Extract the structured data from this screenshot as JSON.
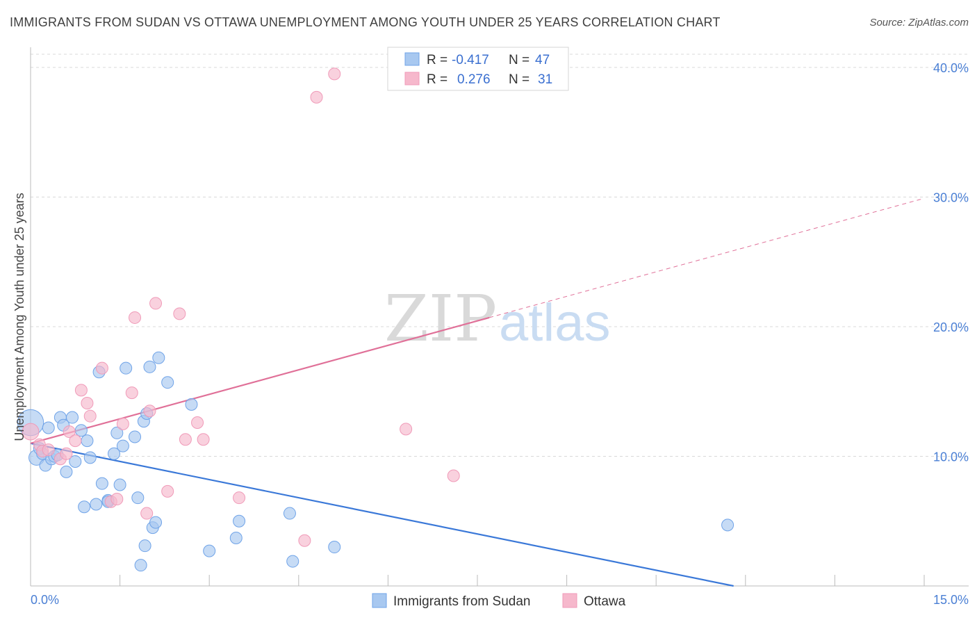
{
  "title": "IMMIGRANTS FROM SUDAN VS OTTAWA UNEMPLOYMENT AMONG YOUTH UNDER 25 YEARS CORRELATION CHART",
  "source": "Source: ZipAtlas.com",
  "watermark": {
    "zip": "ZIP",
    "atlas": "atlas"
  },
  "legend_box": {
    "rows": [
      {
        "r_label": "R =",
        "r_value": "-0.417",
        "n_label": "N =",
        "n_value": "47",
        "color": "#a8c8f0"
      },
      {
        "r_label": "R =",
        "r_value": "0.276",
        "n_label": "N =",
        "n_value": "31",
        "color": "#f6b8cc"
      }
    ]
  },
  "bottom_legend": [
    {
      "label": "Immigrants from Sudan",
      "color": "#a8c8f0"
    },
    {
      "label": "Ottawa",
      "color": "#f6b8cc"
    }
  ],
  "chart_data": {
    "type": "scatter",
    "xlabel": "",
    "ylabel": "Unemployment Among Youth under 25 years",
    "xlim": [
      0,
      15
    ],
    "ylim": [
      0,
      40
    ],
    "x_tick_labels": [
      "0.0%",
      "15.0%"
    ],
    "y_ticks": [
      10,
      20,
      30,
      40
    ],
    "y_tick_labels": [
      "10.0%",
      "20.0%",
      "30.0%",
      "40.0%"
    ],
    "grid": true,
    "legend_position": "top-center",
    "series": [
      {
        "name": "Immigrants from Sudan",
        "color": "#6fa3e8",
        "fill": "#a8c8f0",
        "line_color": "#3a78d8",
        "trend": {
          "x0": 0,
          "y0": 11.0,
          "x1": 11.8,
          "y1": 0,
          "dashed_from": null
        },
        "points": [
          [
            0.0,
            12.6,
            2.2
          ],
          [
            0.1,
            9.9,
            1.3
          ],
          [
            0.15,
            10.6,
            1.0
          ],
          [
            0.2,
            10.2,
            1.0
          ],
          [
            0.25,
            9.3,
            1.0
          ],
          [
            0.3,
            12.2,
            1.0
          ],
          [
            0.35,
            9.8,
            1.0
          ],
          [
            0.4,
            10.0,
            1.0
          ],
          [
            0.45,
            10.1,
            1.0
          ],
          [
            0.5,
            13.0,
            1.0
          ],
          [
            0.55,
            12.4,
            1.0
          ],
          [
            0.6,
            8.8,
            1.0
          ],
          [
            0.7,
            13.0,
            1.0
          ],
          [
            0.75,
            9.6,
            1.0
          ],
          [
            0.85,
            12.0,
            1.0
          ],
          [
            0.9,
            6.1,
            1.0
          ],
          [
            0.95,
            11.2,
            1.0
          ],
          [
            1.0,
            9.9,
            1.0
          ],
          [
            1.1,
            6.3,
            1.0
          ],
          [
            1.15,
            16.5,
            1.0
          ],
          [
            1.2,
            7.9,
            1.0
          ],
          [
            1.3,
            6.6,
            1.0
          ],
          [
            1.3,
            6.5,
            1.0
          ],
          [
            1.4,
            10.2,
            1.0
          ],
          [
            1.45,
            11.8,
            1.0
          ],
          [
            1.5,
            7.8,
            1.0
          ],
          [
            1.55,
            10.8,
            1.0
          ],
          [
            1.6,
            16.8,
            1.0
          ],
          [
            1.75,
            11.5,
            1.0
          ],
          [
            1.8,
            6.8,
            1.0
          ],
          [
            1.85,
            1.6,
            1.0
          ],
          [
            1.9,
            12.7,
            1.0
          ],
          [
            1.92,
            3.1,
            1.0
          ],
          [
            1.95,
            13.3,
            1.0
          ],
          [
            2.0,
            16.9,
            1.0
          ],
          [
            2.05,
            4.5,
            1.0
          ],
          [
            2.1,
            4.9,
            1.0
          ],
          [
            2.15,
            17.6,
            1.0
          ],
          [
            2.3,
            15.7,
            1.0
          ],
          [
            2.7,
            14.0,
            1.0
          ],
          [
            3.0,
            2.7,
            1.0
          ],
          [
            3.45,
            3.7,
            1.0
          ],
          [
            3.5,
            5.0,
            1.0
          ],
          [
            4.35,
            5.6,
            1.0
          ],
          [
            4.4,
            1.9,
            1.0
          ],
          [
            5.1,
            3.0,
            1.0
          ],
          [
            11.7,
            4.7,
            1.0
          ]
        ]
      },
      {
        "name": "Ottawa",
        "color": "#f09ab8",
        "fill": "#f6b8cc",
        "line_color": "#e07098",
        "trend": {
          "x0": 0,
          "y0": 11.0,
          "x1": 15,
          "y1": 29.9,
          "dashed_from": 7.7
        },
        "points": [
          [
            0.0,
            11.9,
            1.4
          ],
          [
            0.15,
            10.9,
            1.0
          ],
          [
            0.2,
            10.4,
            1.0
          ],
          [
            0.3,
            10.5,
            1.0
          ],
          [
            0.5,
            9.8,
            1.0
          ],
          [
            0.6,
            10.2,
            1.0
          ],
          [
            0.65,
            11.9,
            1.0
          ],
          [
            0.75,
            11.2,
            1.0
          ],
          [
            0.85,
            15.1,
            1.0
          ],
          [
            0.95,
            14.1,
            1.0
          ],
          [
            1.0,
            13.1,
            1.0
          ],
          [
            1.2,
            16.8,
            1.0
          ],
          [
            1.35,
            6.5,
            1.0
          ],
          [
            1.45,
            6.7,
            1.0
          ],
          [
            1.55,
            12.5,
            1.0
          ],
          [
            1.7,
            14.9,
            1.0
          ],
          [
            1.75,
            20.7,
            1.0
          ],
          [
            1.95,
            5.6,
            1.0
          ],
          [
            2.0,
            13.5,
            1.0
          ],
          [
            2.1,
            21.8,
            1.0
          ],
          [
            2.3,
            7.3,
            1.0
          ],
          [
            2.5,
            21.0,
            1.0
          ],
          [
            2.6,
            11.3,
            1.0
          ],
          [
            2.8,
            12.6,
            1.0
          ],
          [
            2.9,
            11.3,
            1.0
          ],
          [
            3.5,
            6.8,
            1.0
          ],
          [
            4.6,
            3.5,
            1.0
          ],
          [
            4.8,
            37.7,
            1.0
          ],
          [
            5.1,
            39.5,
            1.0
          ],
          [
            6.3,
            12.1,
            1.0
          ],
          [
            7.1,
            8.5,
            1.0
          ]
        ]
      }
    ]
  }
}
